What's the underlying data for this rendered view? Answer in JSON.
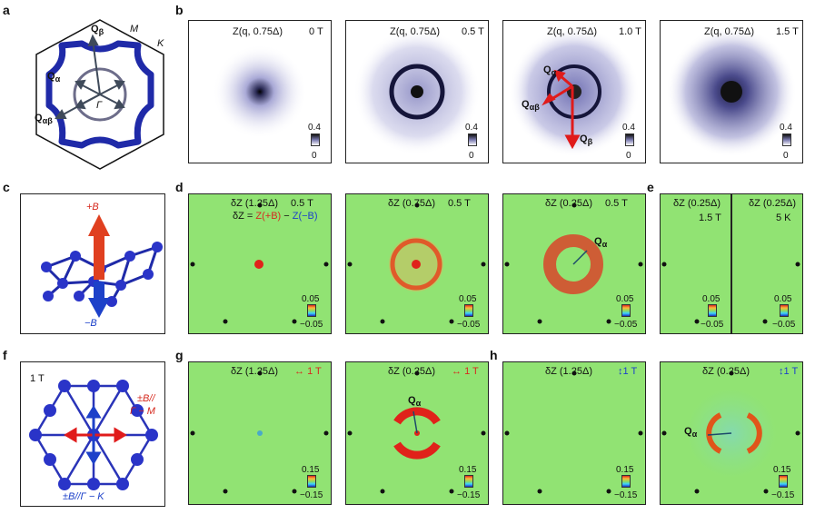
{
  "panel_letters": {
    "a": "a",
    "b": "b",
    "c": "c",
    "d": "d",
    "e": "e",
    "f": "f",
    "g": "g",
    "h": "h"
  },
  "panel_a": {
    "q_beta": "Q",
    "q_beta_sub": "β",
    "q_alpha": "Q",
    "q_alpha_sub": "α",
    "q_ab": "Q",
    "q_ab_sub": "αβ",
    "gamma": "Γ",
    "m": "M",
    "k": "K"
  },
  "panel_b": [
    {
      "title": "Z(q, 0.75Δ)",
      "field": "0 T",
      "cmax": "0.4",
      "cmin": "0"
    },
    {
      "title": "Z(q, 0.75Δ)",
      "field": "0.5 T",
      "cmax": "0.4",
      "cmin": "0"
    },
    {
      "title": "Z(q, 0.75Δ)",
      "field": "1.0 T",
      "cmax": "0.4",
      "cmin": "0",
      "q_alpha": "Q",
      "q_alpha_sub": "α",
      "q_ab": "Q",
      "q_ab_sub": "αβ",
      "q_beta": "Q",
      "q_beta_sub": "β"
    },
    {
      "title": "Z(q, 0.75Δ)",
      "field": "1.5 T",
      "cmax": "0.4",
      "cmin": "0"
    }
  ],
  "panel_c": {
    "plus_b": "+B",
    "minus_b": "−B"
  },
  "panel_d": [
    {
      "title": "δZ (1.25Δ)",
      "field": "0.5 T",
      "formula_lhs": "δZ = ",
      "formula_p": "Z(+B)",
      "formula_minus": " − ",
      "formula_m": "Z(−B)",
      "cmax": "0.05",
      "cmin": "−0.05"
    },
    {
      "title": "δZ (0.75Δ)",
      "field": "0.5 T",
      "cmax": "0.05",
      "cmin": "−0.05"
    },
    {
      "title": "δZ (0.25Δ)",
      "field": "0.5 T",
      "q_alpha": "Q",
      "q_alpha_sub": "α",
      "cmax": "0.05",
      "cmin": "−0.05"
    }
  ],
  "panel_e": [
    {
      "title": "δZ (0.25Δ)",
      "field": "1.5 T",
      "cmax": "0.05",
      "cmin": "−0.05"
    },
    {
      "title": "δZ (0.25Δ)",
      "field": "5 K",
      "cmax": "0.05",
      "cmin": "−0.05"
    }
  ],
  "panel_f": {
    "field": "1 T",
    "par1": "±B//",
    "par2": "Γ − M",
    "perp": "±B//Γ − K"
  },
  "panel_g": [
    {
      "title": "δZ (1.25Δ)",
      "field": "1 T",
      "cmax": "0.15",
      "cmin": "−0.15"
    },
    {
      "title": "δZ (0.25Δ)",
      "field": "1 T",
      "q_alpha": "Q",
      "q_alpha_sub": "α",
      "cmax": "0.15",
      "cmin": "−0.15"
    }
  ],
  "panel_h": [
    {
      "title": "δZ (1.25Δ)",
      "field": "1 T",
      "cmax": "0.15",
      "cmin": "−0.15"
    },
    {
      "title": "δZ (0.25Δ)",
      "field": "1 T",
      "q_alpha": "Q",
      "q_alpha_sub": "α",
      "cmax": "0.15",
      "cmin": "−0.15"
    }
  ],
  "colors": {
    "red": "#d62a1f",
    "blue": "#1d41c9",
    "navy": "#1f2aa8",
    "green": "#91e373"
  }
}
